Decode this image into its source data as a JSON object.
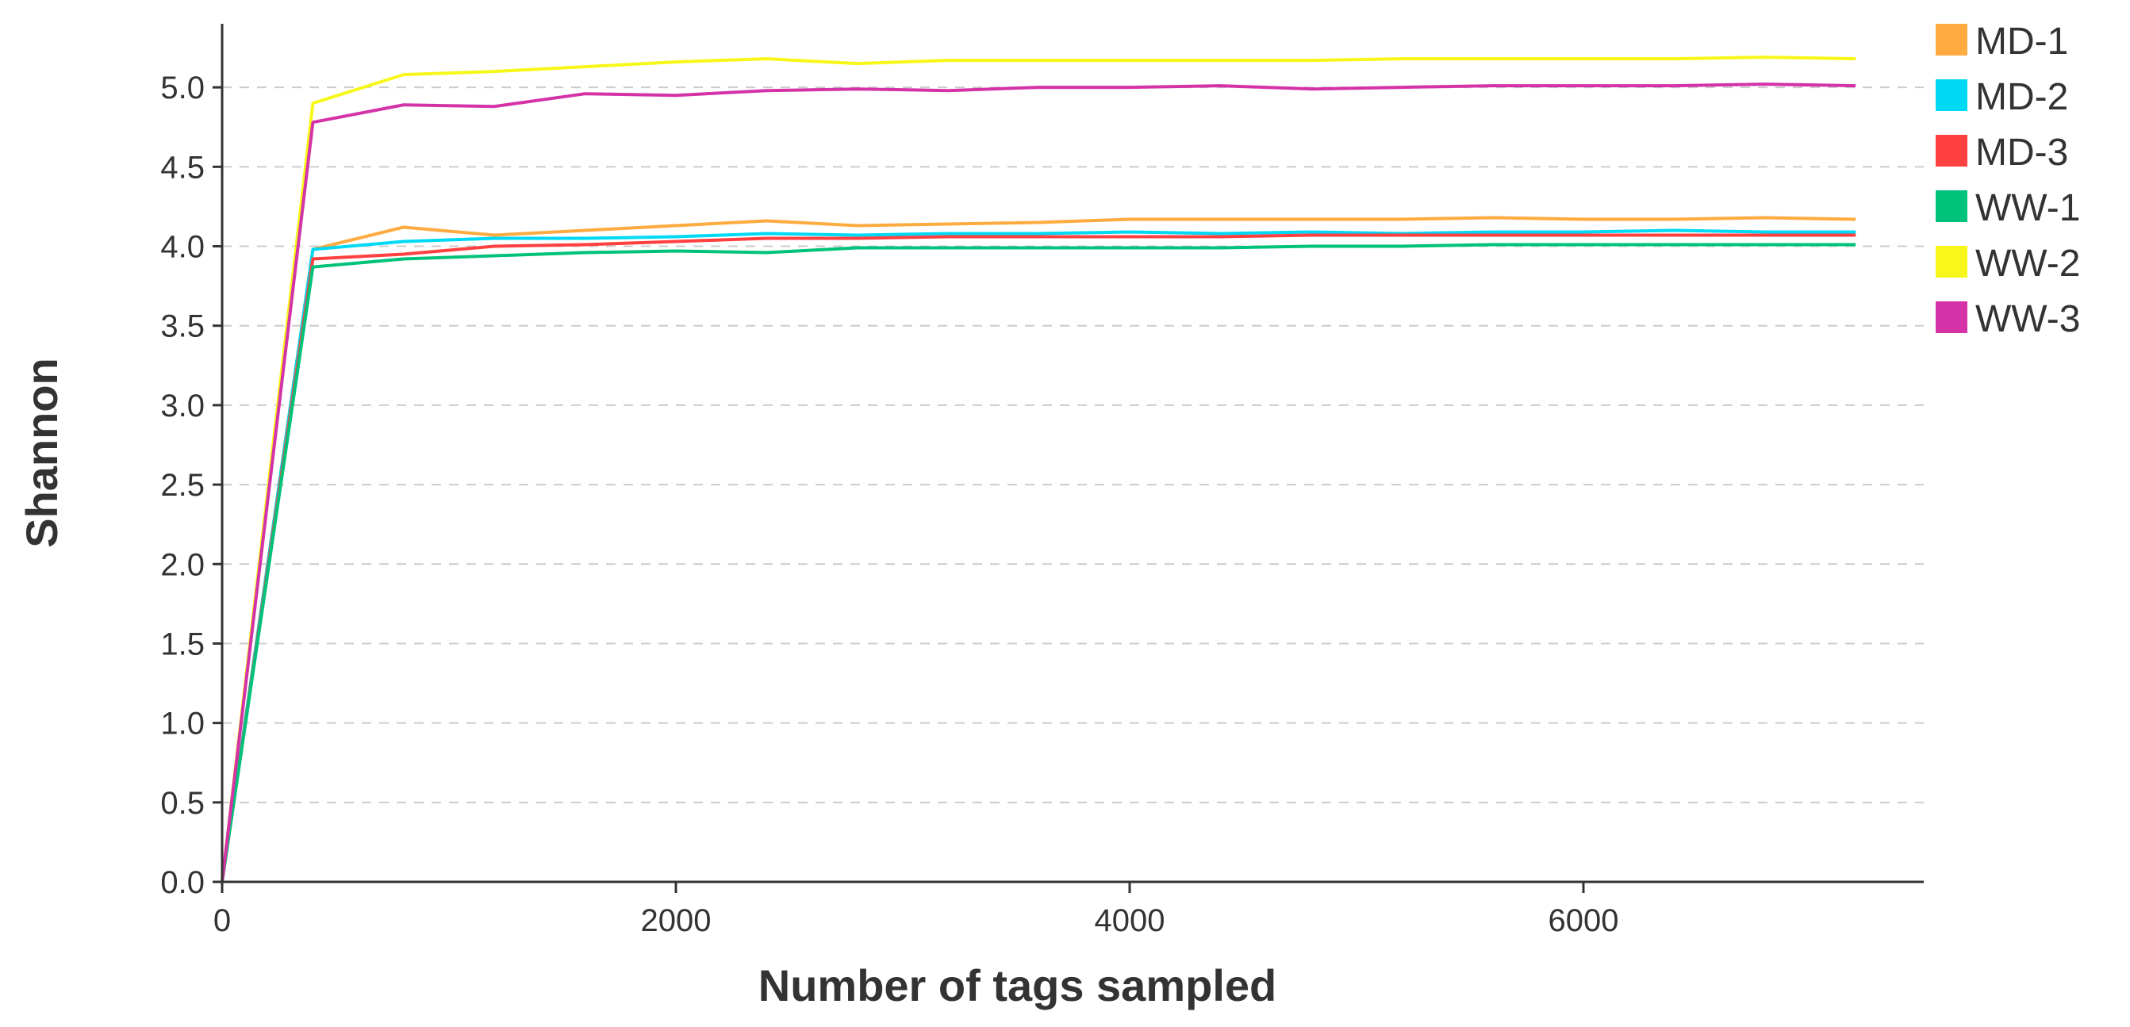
{
  "chart_data": {
    "type": "line",
    "title": "",
    "xlabel": "Number of tags sampled",
    "ylabel": "Shannon",
    "xlim": [
      0,
      7500
    ],
    "ylim": [
      0,
      5.4
    ],
    "xticks": [
      0,
      2000,
      4000,
      6000
    ],
    "xtick_labels": [
      "0",
      "2000",
      "4000",
      "6000"
    ],
    "yticks": [
      0,
      0.5,
      1,
      1.5,
      2,
      2.5,
      3,
      3.5,
      4,
      4.5,
      5
    ],
    "ytick_labels": [
      "0.0",
      "0.5",
      "1.0",
      "1.5",
      "2.0",
      "2.5",
      "3.0",
      "3.5",
      "4.0",
      "4.5",
      "5.0"
    ],
    "grid": "horizontal-dashed",
    "legend": "top-right",
    "x": [
      0,
      400,
      800,
      1200,
      1600,
      2000,
      2400,
      2800,
      3200,
      3600,
      4000,
      4400,
      4800,
      5200,
      5600,
      6000,
      6400,
      6800,
      7200
    ],
    "series": [
      {
        "name": "MD-1",
        "color": "#ffab40",
        "values": [
          0,
          3.98,
          4.12,
          4.07,
          4.1,
          4.13,
          4.16,
          4.13,
          4.14,
          4.15,
          4.17,
          4.17,
          4.17,
          4.17,
          4.18,
          4.17,
          4.17,
          4.18,
          4.17
        ]
      },
      {
        "name": "MD-2",
        "color": "#00d9f5",
        "values": [
          0,
          3.98,
          4.03,
          4.05,
          4.05,
          4.06,
          4.08,
          4.07,
          4.08,
          4.08,
          4.09,
          4.08,
          4.09,
          4.08,
          4.09,
          4.09,
          4.1,
          4.09,
          4.09
        ]
      },
      {
        "name": "MD-3",
        "color": "#ff4040",
        "values": [
          0,
          3.92,
          3.95,
          4.0,
          4.01,
          4.03,
          4.05,
          4.05,
          4.06,
          4.06,
          4.06,
          4.06,
          4.07,
          4.07,
          4.07,
          4.07,
          4.07,
          4.07,
          4.07
        ]
      },
      {
        "name": "WW-1",
        "color": "#00c27a",
        "values": [
          0,
          3.87,
          3.92,
          3.94,
          3.96,
          3.97,
          3.96,
          3.99,
          3.99,
          3.99,
          3.99,
          3.99,
          4.0,
          4.0,
          4.01,
          4.01,
          4.01,
          4.01,
          4.01
        ]
      },
      {
        "name": "WW-2",
        "color": "#f7f71a",
        "values": [
          0,
          4.9,
          5.08,
          5.1,
          5.13,
          5.16,
          5.18,
          5.15,
          5.17,
          5.17,
          5.17,
          5.17,
          5.17,
          5.18,
          5.18,
          5.18,
          5.18,
          5.19,
          5.18
        ]
      },
      {
        "name": "WW-3",
        "color": "#d433a8",
        "values": [
          0,
          4.78,
          4.89,
          4.88,
          4.96,
          4.95,
          4.98,
          4.99,
          4.98,
          5.0,
          5.0,
          5.01,
          4.99,
          5.0,
          5.01,
          5.01,
          5.01,
          5.02,
          5.01
        ]
      }
    ]
  }
}
